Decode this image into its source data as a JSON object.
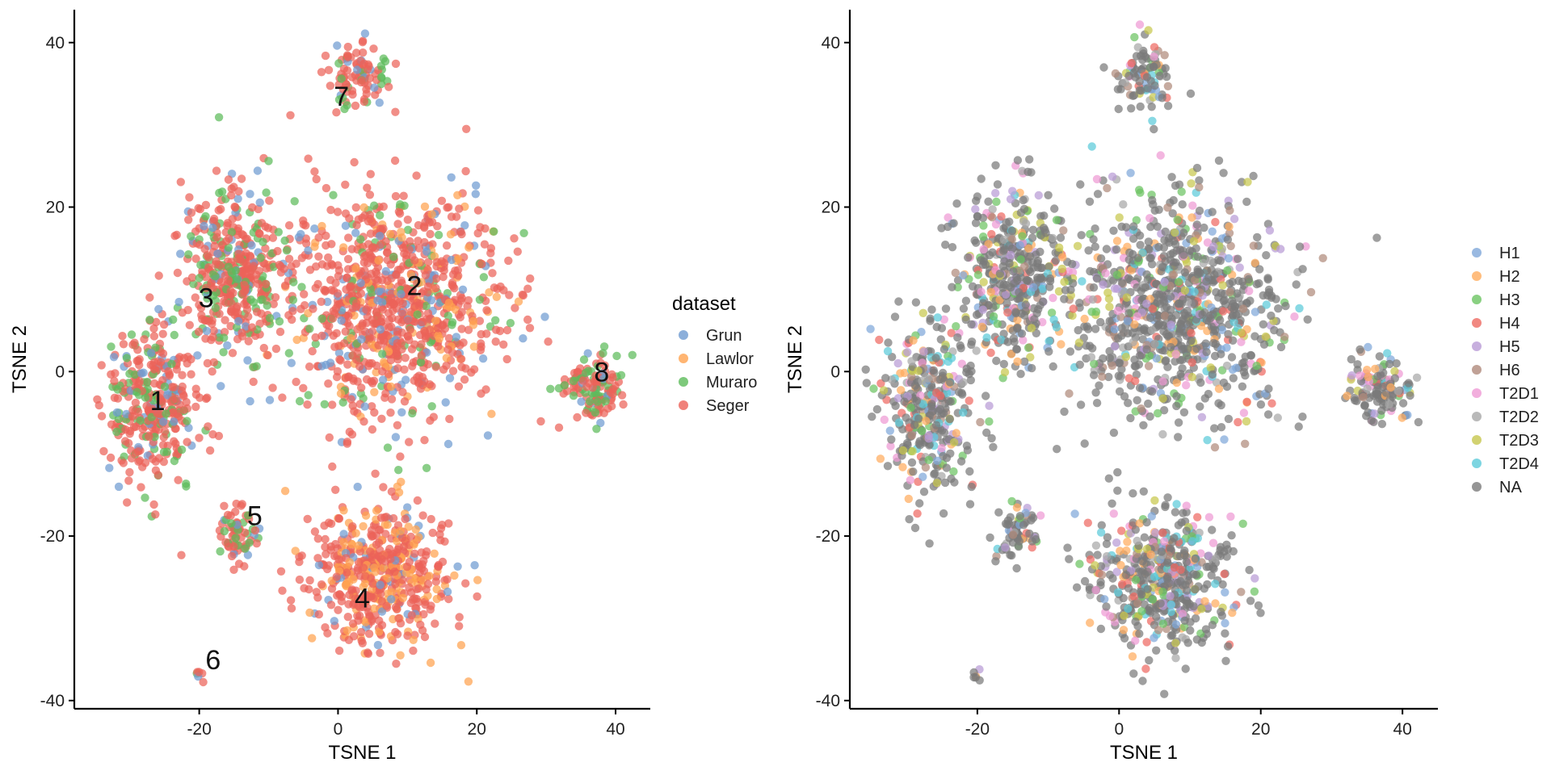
{
  "chart_data": [
    {
      "type": "scatter",
      "xlabel": "TSNE 1",
      "ylabel": "TSNE 2",
      "xticks": [
        -20,
        0,
        20,
        40
      ],
      "yticks": [
        -40,
        -20,
        0,
        20,
        40
      ],
      "xlim": [
        -38,
        45
      ],
      "ylim": [
        -41,
        44
      ],
      "legend": {
        "title": "dataset",
        "placement": "right",
        "entries": [
          {
            "label": "Grun",
            "color": "#6f9bd1"
          },
          {
            "label": "Lawlor",
            "color": "#ffa24f"
          },
          {
            "label": "Muraro",
            "color": "#5dbb5a"
          },
          {
            "label": "Seger",
            "color": "#ec6259"
          }
        ]
      },
      "cluster_labels": [
        {
          "text": "1",
          "x": -26,
          "y": -3.5
        },
        {
          "text": "2",
          "x": 11,
          "y": 10.5
        },
        {
          "text": "3",
          "x": -19,
          "y": 9
        },
        {
          "text": "4",
          "x": 3.5,
          "y": -27.5
        },
        {
          "text": "5",
          "x": -12,
          "y": -17.5
        },
        {
          "text": "6",
          "x": -18,
          "y": -35
        },
        {
          "text": "7",
          "x": 0.5,
          "y": 33.5
        },
        {
          "text": "8",
          "x": 38,
          "y": 0
        }
      ]
    },
    {
      "type": "scatter",
      "xlabel": "TSNE 1",
      "ylabel": "TSNE 2",
      "xticks": [
        -20,
        0,
        20,
        40
      ],
      "yticks": [
        -40,
        -20,
        0,
        20,
        40
      ],
      "xlim": [
        -38,
        45
      ],
      "ylim": [
        -41,
        44
      ],
      "legend": {
        "title": "",
        "placement": "right",
        "entries": [
          {
            "label": "H1",
            "color": "#7fa7d9"
          },
          {
            "label": "H2",
            "color": "#ffac5e"
          },
          {
            "label": "H3",
            "color": "#6cc462"
          },
          {
            "label": "H4",
            "color": "#ee6a62"
          },
          {
            "label": "H5",
            "color": "#b99bd6"
          },
          {
            "label": "H6",
            "color": "#b08a7c"
          },
          {
            "label": "T2D1",
            "color": "#ef9ad4"
          },
          {
            "label": "T2D2",
            "color": "#a8a8a8"
          },
          {
            "label": "T2D3",
            "color": "#c7c74e"
          },
          {
            "label": "T2D4",
            "color": "#5ccbd9"
          },
          {
            "label": "NA",
            "color": "#7a7a7a"
          }
        ]
      }
    }
  ],
  "clusters": [
    {
      "id": 1,
      "cx": -27,
      "cy": -4,
      "sx": 3.3,
      "sy": 5.0,
      "weight": 1.3
    },
    {
      "id": 2,
      "cx": 8,
      "cy": 8,
      "sx": 7.5,
      "sy": 6.5,
      "weight": 3.6
    },
    {
      "id": 3,
      "cx": -15,
      "cy": 12,
      "sx": 3.8,
      "sy": 5.0,
      "weight": 1.6
    },
    {
      "id": 4,
      "cx": 6,
      "cy": -25,
      "sx": 5.0,
      "sy": 4.2,
      "weight": 1.9
    },
    {
      "id": 5,
      "cx": -14.5,
      "cy": -19.5,
      "sx": 1.4,
      "sy": 1.8,
      "weight": 0.25
    },
    {
      "id": 6,
      "cx": -20,
      "cy": -37,
      "sx": 0.3,
      "sy": 0.4,
      "weight": 0.02
    },
    {
      "id": 7,
      "cx": 3.5,
      "cy": 36,
      "sx": 2.0,
      "sy": 2.2,
      "weight": 0.35
    },
    {
      "id": 8,
      "cx": 37,
      "cy": -2,
      "sx": 2.2,
      "sy": 2.0,
      "weight": 0.45
    }
  ]
}
